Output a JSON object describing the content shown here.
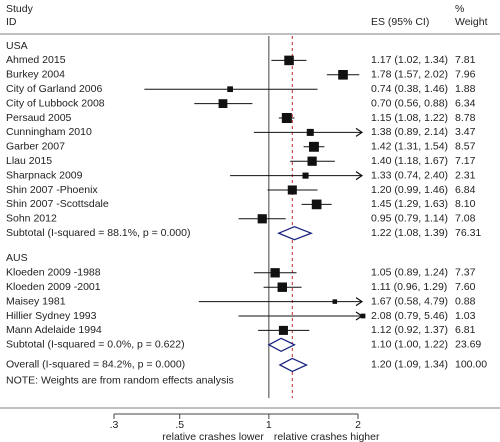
{
  "chart_data": {
    "type": "forest",
    "header": {
      "study": "Study",
      "id": "ID",
      "es": "ES (95% CI)",
      "weight_pct": "%",
      "weight": "Weight"
    },
    "x_scale": "log",
    "x_ticks": [
      {
        "value": 0.3,
        "label": ".3"
      },
      {
        "value": 0.5,
        "label": ".5"
      },
      {
        "value": 1,
        "label": "1"
      },
      {
        "value": 2,
        "label": "2"
      }
    ],
    "null_line": 1,
    "overall_line": 1.2,
    "xlabel_left": "relative crashes lower",
    "xlabel_right": "relative crashes higher",
    "note": "NOTE: Weights are from random effects analysis",
    "groups": [
      {
        "name": "USA",
        "studies": [
          {
            "label": "Ahmed 2015",
            "es": 1.17,
            "lo": 1.02,
            "hi": 1.34,
            "weight": 7.81,
            "es_text": "1.17 (1.02, 1.34)",
            "weight_text": "7.81"
          },
          {
            "label": "Burkey 2004",
            "es": 1.78,
            "lo": 1.57,
            "hi": 2.02,
            "weight": 7.96,
            "es_text": "1.78 (1.57, 2.02)",
            "weight_text": "7.96"
          },
          {
            "label": "City of Garland 2006",
            "es": 0.74,
            "lo": 0.38,
            "hi": 1.46,
            "weight": 1.88,
            "es_text": "0.74 (0.38, 1.46)",
            "weight_text": "1.88"
          },
          {
            "label": "City of Lubbock 2008",
            "es": 0.7,
            "lo": 0.56,
            "hi": 0.88,
            "weight": 6.34,
            "es_text": "0.70 (0.56, 0.88)",
            "weight_text": "6.34"
          },
          {
            "label": "Persaud 2005",
            "es": 1.15,
            "lo": 1.08,
            "hi": 1.22,
            "weight": 8.78,
            "es_text": "1.15 (1.08, 1.22)",
            "weight_text": "8.78"
          },
          {
            "label": "Cunningham 2010",
            "es": 1.38,
            "lo": 0.89,
            "hi": 2.14,
            "weight": 3.47,
            "es_text": "1.38 (0.89, 2.14)",
            "weight_text": "3.47"
          },
          {
            "label": "Garber 2007",
            "es": 1.42,
            "lo": 1.31,
            "hi": 1.54,
            "weight": 8.57,
            "es_text": "1.42 (1.31, 1.54)",
            "weight_text": "8.57"
          },
          {
            "label": "Llau 2015",
            "es": 1.4,
            "lo": 1.18,
            "hi": 1.67,
            "weight": 7.17,
            "es_text": "1.40 (1.18, 1.67)",
            "weight_text": "7.17"
          },
          {
            "label": "Sharpnack 2009",
            "es": 1.33,
            "lo": 0.74,
            "hi": 2.4,
            "weight": 2.31,
            "es_text": "1.33 (0.74, 2.40)",
            "weight_text": "2.31"
          },
          {
            "label": "Shin 2007 -Phoenix",
            "es": 1.2,
            "lo": 0.99,
            "hi": 1.46,
            "weight": 6.84,
            "es_text": "1.20 (0.99, 1.46)",
            "weight_text": "6.84"
          },
          {
            "label": "Shin 2007 -Scottsdale",
            "es": 1.45,
            "lo": 1.29,
            "hi": 1.63,
            "weight": 8.1,
            "es_text": "1.45 (1.29, 1.63)",
            "weight_text": "8.10"
          },
          {
            "label": "Sohn 2012",
            "es": 0.95,
            "lo": 0.79,
            "hi": 1.14,
            "weight": 7.08,
            "es_text": "0.95 (0.79, 1.14)",
            "weight_text": "7.08"
          }
        ],
        "subtotal": {
          "label": "Subtotal  (I-squared = 88.1%, p = 0.000)",
          "es": 1.22,
          "lo": 1.08,
          "hi": 1.39,
          "weight": 76.31,
          "es_text": "1.22 (1.08, 1.39)",
          "weight_text": "76.31"
        }
      },
      {
        "name": "AUS",
        "studies": [
          {
            "label": "Kloeden 2009 -1988",
            "es": 1.05,
            "lo": 0.89,
            "hi": 1.24,
            "weight": 7.37,
            "es_text": "1.05 (0.89, 1.24)",
            "weight_text": "7.37"
          },
          {
            "label": "Kloeden 2009 -2001",
            "es": 1.11,
            "lo": 0.96,
            "hi": 1.29,
            "weight": 7.6,
            "es_text": "1.11 (0.96, 1.29)",
            "weight_text": "7.60"
          },
          {
            "label": "Maisey 1981",
            "es": 1.67,
            "lo": 0.58,
            "hi": 4.79,
            "weight": 0.88,
            "es_text": "1.67 (0.58, 4.79)",
            "weight_text": "0.88"
          },
          {
            "label": "Hillier Sydney 1993",
            "es": 2.08,
            "lo": 0.79,
            "hi": 5.46,
            "weight": 1.03,
            "es_text": "2.08 (0.79, 5.46)",
            "weight_text": "1.03"
          },
          {
            "label": "Mann Adelaide 1994",
            "es": 1.12,
            "lo": 0.92,
            "hi": 1.37,
            "weight": 6.81,
            "es_text": "1.12 (0.92, 1.37)",
            "weight_text": "6.81"
          }
        ],
        "subtotal": {
          "label": "Subtotal  (I-squared = 0.0%, p = 0.622)",
          "es": 1.1,
          "lo": 1.0,
          "hi": 1.22,
          "weight": 23.69,
          "es_text": "1.10 (1.00, 1.22)",
          "weight_text": "23.69"
        }
      }
    ],
    "overall": {
      "label": "Overall  (I-squared = 84.2%, p = 0.000)",
      "es": 1.2,
      "lo": 1.09,
      "hi": 1.34,
      "weight": 100.0,
      "es_text": "1.20 (1.09, 1.34)",
      "weight_text": "100.00"
    },
    "colors": {
      "diamond": "#1a237e",
      "overall_line": "#c62828",
      "text": "#222222",
      "axis": "#444444"
    }
  }
}
